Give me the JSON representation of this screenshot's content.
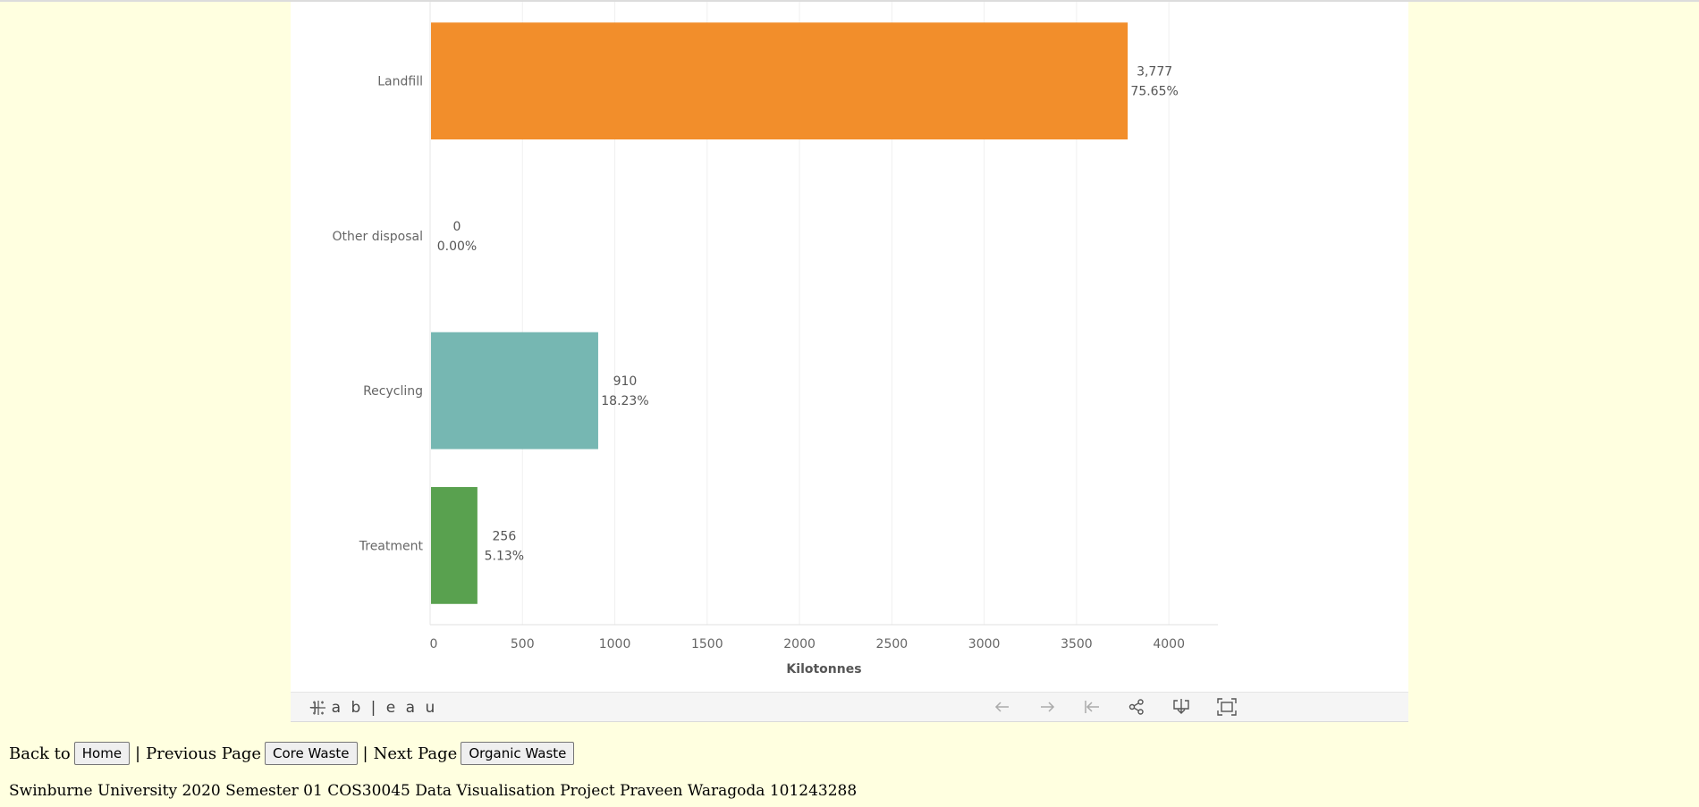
{
  "chart_data": {
    "type": "bar",
    "orientation": "horizontal",
    "categories": [
      "Landfill",
      "Other disposal",
      "Recycling",
      "Treatment"
    ],
    "values": [
      3777,
      0,
      910,
      256
    ],
    "value_labels": [
      "3,777",
      "0",
      "910",
      "256"
    ],
    "percent_labels": [
      "75.65%",
      "0.00%",
      "18.23%",
      "5.13%"
    ],
    "colors": [
      "#f28e2b",
      "#f28e2b",
      "#76b7b2",
      "#59a14f"
    ],
    "xlabel": "Kilotonnes",
    "x_ticks": [
      0,
      500,
      1000,
      1500,
      2000,
      2500,
      3000,
      3500,
      4000
    ],
    "xlim": [
      0,
      4280
    ],
    "grid": true
  },
  "toolbar": {
    "brand": "+ a b | e a u",
    "icons": [
      "undo-icon",
      "redo-icon",
      "revert-icon",
      "share-icon",
      "download-icon",
      "fullscreen-icon"
    ]
  },
  "nav": {
    "back_text": "Back to",
    "home_label": "Home",
    "sep1": "|",
    "prev_text": "Previous Page",
    "prev_label": "Core Waste",
    "sep2": "|",
    "next_text": "Next Page",
    "next_label": "Organic Waste"
  },
  "footer": {
    "text": "Swinburne University 2020 Semester 01 COS30045 Data Visualisation Project Praveen Waragoda 101243288"
  }
}
